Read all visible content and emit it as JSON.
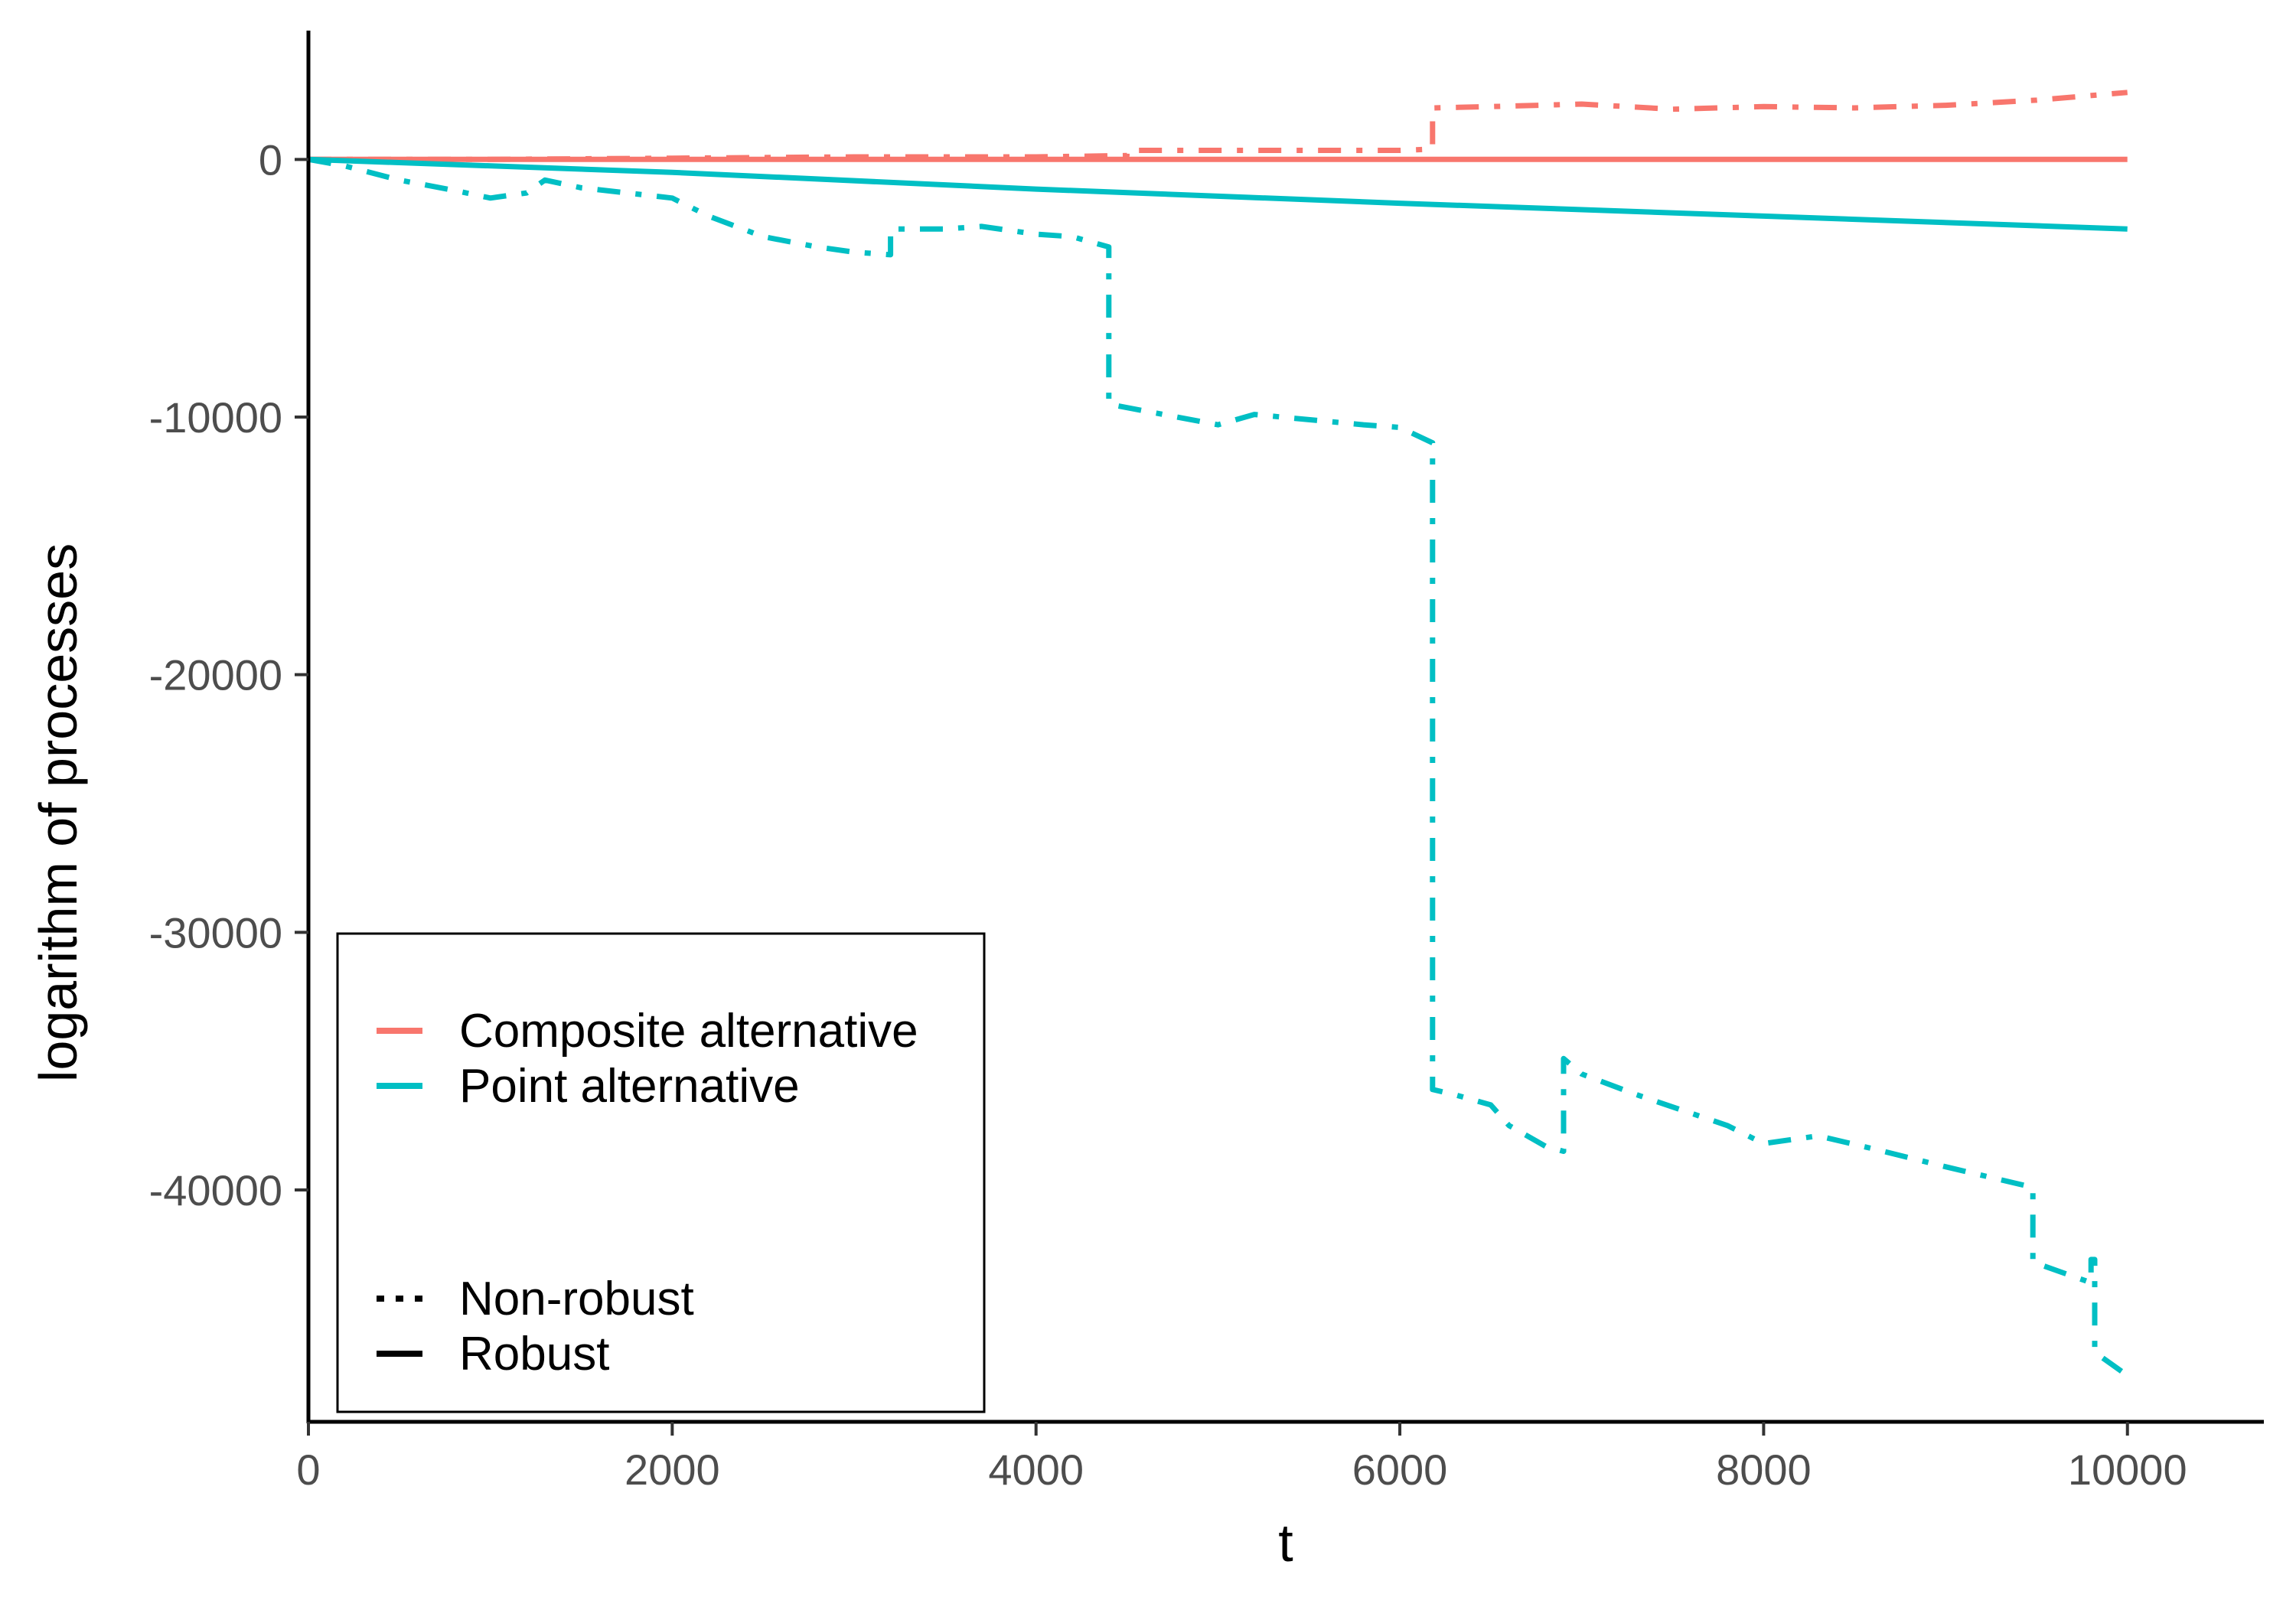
{
  "chart_data": {
    "type": "line",
    "title": "",
    "xlabel": "t",
    "ylabel": "logarithm of processes",
    "xlim": [
      0,
      10750
    ],
    "ylim": [
      -49000,
      5000
    ],
    "xticks": [
      0,
      2000,
      4000,
      6000,
      8000,
      10000
    ],
    "yticks": [
      0,
      -10000,
      -20000,
      -30000,
      -40000
    ],
    "grid": false,
    "legend_position": "bottom-left",
    "legend_alternative": [
      {
        "label": "Composite alternative",
        "color": "#F8766D"
      },
      {
        "label": "Point alternative",
        "color": "#00BFC4"
      }
    ],
    "legend_robustness": [
      {
        "label": "Non-robust",
        "linestyle": "dotted"
      },
      {
        "label": "Robust",
        "linestyle": "solid"
      }
    ],
    "series": [
      {
        "alternative": "Composite alternative",
        "robustness": "Robust",
        "color": "#F8766D",
        "linestyle": "solid",
        "x": [
          0,
          10000
        ],
        "y": [
          0,
          0
        ]
      },
      {
        "alternative": "Point alternative",
        "robustness": "Robust",
        "color": "#00BFC4",
        "linestyle": "solid",
        "x": [
          0,
          2000,
          4000,
          6000,
          8000,
          10000
        ],
        "y": [
          0,
          -500,
          -1150,
          -1700,
          -2200,
          -2700
        ]
      },
      {
        "alternative": "Composite alternative",
        "robustness": "Non-robust",
        "color": "#F8766D",
        "linestyle": "dashdot",
        "x": [
          0,
          1000,
          2000,
          3000,
          4000,
          4500,
          4500,
          5000,
          6000,
          6180,
          6180,
          6500,
          7000,
          7500,
          8000,
          8500,
          9000,
          9500,
          10000
        ],
        "y": [
          0,
          0,
          50,
          100,
          100,
          150,
          350,
          350,
          350,
          400,
          2000,
          2050,
          2150,
          1950,
          2050,
          2000,
          2100,
          2300,
          2600
        ]
      },
      {
        "alternative": "Point alternative",
        "robustness": "Non-robust",
        "color": "#00BFC4",
        "linestyle": "dashdot",
        "x": [
          0,
          200,
          500,
          800,
          1000,
          1200,
          1300,
          1500,
          2000,
          2200,
          2500,
          2800,
          3000,
          3200,
          3200,
          3500,
          3700,
          4000,
          4200,
          4400,
          4400,
          4700,
          5000,
          5200,
          5500,
          5800,
          6000,
          6180,
          6180,
          6300,
          6500,
          6600,
          6800,
          6900,
          6900,
          7000,
          7300,
          7800,
          8000,
          8300,
          8600,
          9000,
          9480,
          9480,
          9800,
          9800,
          9820,
          9820,
          10000
        ],
        "y": [
          0,
          -250,
          -800,
          -1200,
          -1500,
          -1300,
          -800,
          -1100,
          -1500,
          -2200,
          -3000,
          -3400,
          -3600,
          -3700,
          -2700,
          -2700,
          -2600,
          -2900,
          -3000,
          -3400,
          -9500,
          -9900,
          -10300,
          -9900,
          -10100,
          -10300,
          -10400,
          -11000,
          -36100,
          -36300,
          -36700,
          -37500,
          -38300,
          -38500,
          -34900,
          -35500,
          -36300,
          -37500,
          -38200,
          -37900,
          -38400,
          -39100,
          -39900,
          -42800,
          -43600,
          -42700,
          -42700,
          -46300,
          -47200
        ]
      }
    ]
  }
}
